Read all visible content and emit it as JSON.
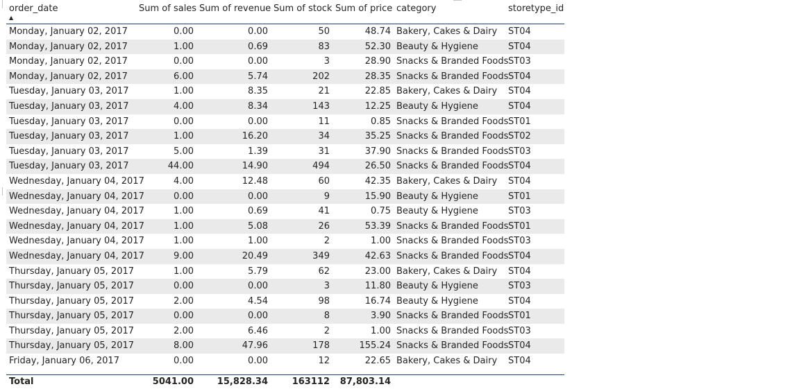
{
  "columns": [
    {
      "label": "order_date"
    },
    {
      "label": "Sum of sales"
    },
    {
      "label": "Sum of revenue"
    },
    {
      "label": "Sum of stock"
    },
    {
      "label": "Sum of price"
    },
    {
      "label": "category"
    },
    {
      "label": "storetype_id"
    }
  ],
  "sort_indicator": "▲",
  "rows": [
    [
      "Monday, January 02, 2017",
      "0.00",
      "0.00",
      "50",
      "48.74",
      "Bakery, Cakes & Dairy",
      "ST04"
    ],
    [
      "Monday, January 02, 2017",
      "1.00",
      "0.69",
      "83",
      "52.30",
      "Beauty & Hygiene",
      "ST04"
    ],
    [
      "Monday, January 02, 2017",
      "0.00",
      "0.00",
      "3",
      "28.90",
      "Snacks & Branded Foods",
      "ST03"
    ],
    [
      "Monday, January 02, 2017",
      "6.00",
      "5.74",
      "202",
      "28.35",
      "Snacks & Branded Foods",
      "ST04"
    ],
    [
      "Tuesday, January 03, 2017",
      "1.00",
      "8.35",
      "21",
      "22.85",
      "Bakery, Cakes & Dairy",
      "ST04"
    ],
    [
      "Tuesday, January 03, 2017",
      "4.00",
      "8.34",
      "143",
      "12.25",
      "Beauty & Hygiene",
      "ST04"
    ],
    [
      "Tuesday, January 03, 2017",
      "0.00",
      "0.00",
      "11",
      "0.85",
      "Snacks & Branded Foods",
      "ST01"
    ],
    [
      "Tuesday, January 03, 2017",
      "1.00",
      "16.20",
      "34",
      "35.25",
      "Snacks & Branded Foods",
      "ST02"
    ],
    [
      "Tuesday, January 03, 2017",
      "5.00",
      "1.39",
      "31",
      "37.90",
      "Snacks & Branded Foods",
      "ST03"
    ],
    [
      "Tuesday, January 03, 2017",
      "44.00",
      "14.90",
      "494",
      "26.50",
      "Snacks & Branded Foods",
      "ST04"
    ],
    [
      "Wednesday, January 04, 2017",
      "4.00",
      "12.48",
      "60",
      "42.35",
      "Bakery, Cakes & Dairy",
      "ST04"
    ],
    [
      "Wednesday, January 04, 2017",
      "0.00",
      "0.00",
      "9",
      "15.90",
      "Beauty & Hygiene",
      "ST01"
    ],
    [
      "Wednesday, January 04, 2017",
      "1.00",
      "0.69",
      "41",
      "0.75",
      "Beauty & Hygiene",
      "ST03"
    ],
    [
      "Wednesday, January 04, 2017",
      "1.00",
      "5.08",
      "26",
      "53.39",
      "Snacks & Branded Foods",
      "ST01"
    ],
    [
      "Wednesday, January 04, 2017",
      "1.00",
      "1.00",
      "2",
      "1.00",
      "Snacks & Branded Foods",
      "ST03"
    ],
    [
      "Wednesday, January 04, 2017",
      "9.00",
      "20.49",
      "349",
      "42.63",
      "Snacks & Branded Foods",
      "ST04"
    ],
    [
      "Thursday, January 05, 2017",
      "1.00",
      "5.79",
      "62",
      "23.00",
      "Bakery, Cakes & Dairy",
      "ST04"
    ],
    [
      "Thursday, January 05, 2017",
      "0.00",
      "0.00",
      "3",
      "11.80",
      "Beauty & Hygiene",
      "ST03"
    ],
    [
      "Thursday, January 05, 2017",
      "2.00",
      "4.54",
      "98",
      "16.74",
      "Beauty & Hygiene",
      "ST04"
    ],
    [
      "Thursday, January 05, 2017",
      "0.00",
      "0.00",
      "8",
      "3.90",
      "Snacks & Branded Foods",
      "ST01"
    ],
    [
      "Thursday, January 05, 2017",
      "2.00",
      "6.46",
      "2",
      "1.00",
      "Snacks & Branded Foods",
      "ST03"
    ],
    [
      "Thursday, January 05, 2017",
      "8.00",
      "47.96",
      "178",
      "155.24",
      "Snacks & Branded Foods",
      "ST04"
    ],
    [
      "Friday, January 06, 2017",
      "0.00",
      "0.00",
      "12",
      "22.65",
      "Bakery, Cakes & Dairy",
      "ST04"
    ]
  ],
  "totals": {
    "label": "Total",
    "sales": "5041.00",
    "revenue": "15,828.34",
    "stock": "163112",
    "price": "87,803.14"
  },
  "colors": {
    "header_rule": "#1f3f73",
    "band": "#eaeaea",
    "text": "#252423"
  }
}
